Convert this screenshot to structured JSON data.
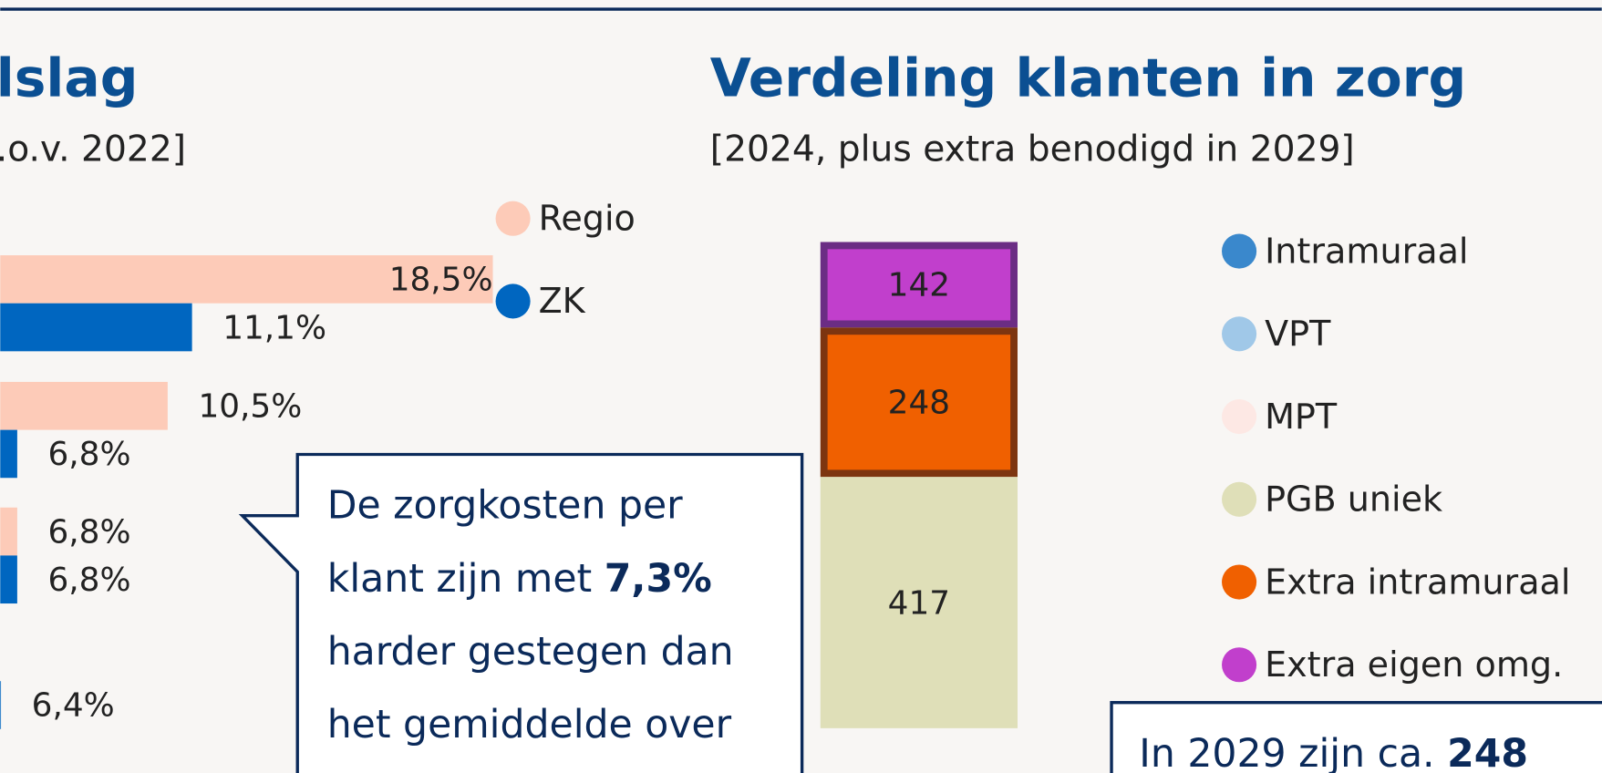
{
  "chart_data": [
    {
      "type": "hbar",
      "title": "lslag",
      "subtitle": ".o.v. 2022]",
      "categories": [
        null,
        null,
        null,
        null
      ],
      "series": [
        {
          "name": "Regio",
          "color": "#fdcbb8",
          "values": [
            18.5,
            10.5,
            6.8,
            null
          ],
          "value_labels": [
            "18,5%",
            "10,5%",
            "6,8%",
            null
          ]
        },
        {
          "name": "ZK",
          "color": "#0066c0",
          "values": [
            11.1,
            6.8,
            6.8,
            6.4
          ],
          "value_labels": [
            "11,1%",
            "6,8%",
            "6,8%",
            "6,4%"
          ]
        }
      ],
      "annotation": [
        [
          {
            "text": "De zorgkosten per"
          }
        ],
        [
          {
            "text": "klant zijn met "
          },
          {
            "text": "7,3%",
            "bold": true
          }
        ],
        [
          {
            "text": "harder gestegen dan"
          }
        ],
        [
          {
            "text": "het gemiddelde over"
          }
        ]
      ]
    },
    {
      "type": "stacked_bar",
      "title": "Verdeling klanten in zorg",
      "subtitle": "[2024, plus extra benodigd in 2029]",
      "categories": [
        null
      ],
      "series": [
        {
          "name": "Intramuraal",
          "color": "#3a88cc",
          "values": [
            null
          ]
        },
        {
          "name": "VPT",
          "color": "#a0c8e8",
          "values": [
            null
          ]
        },
        {
          "name": "MPT",
          "color": "#fde8e4",
          "values": [
            null
          ]
        },
        {
          "name": "PGB uniek",
          "color": "#dfdfb8",
          "values": [
            417
          ]
        },
        {
          "name": "Extra intramuraal",
          "color": "#f06000",
          "edgecolor": "#7d3510",
          "values": [
            248
          ]
        },
        {
          "name": "Extra eigen omg.",
          "color": "#c13fcc",
          "edgecolor": "#6b2d84",
          "values": [
            142
          ]
        }
      ],
      "annotation": [
        [
          {
            "text": "In 2029 zijn ca. "
          },
          {
            "text": "248",
            "bold": true
          }
        ]
      ]
    }
  ]
}
